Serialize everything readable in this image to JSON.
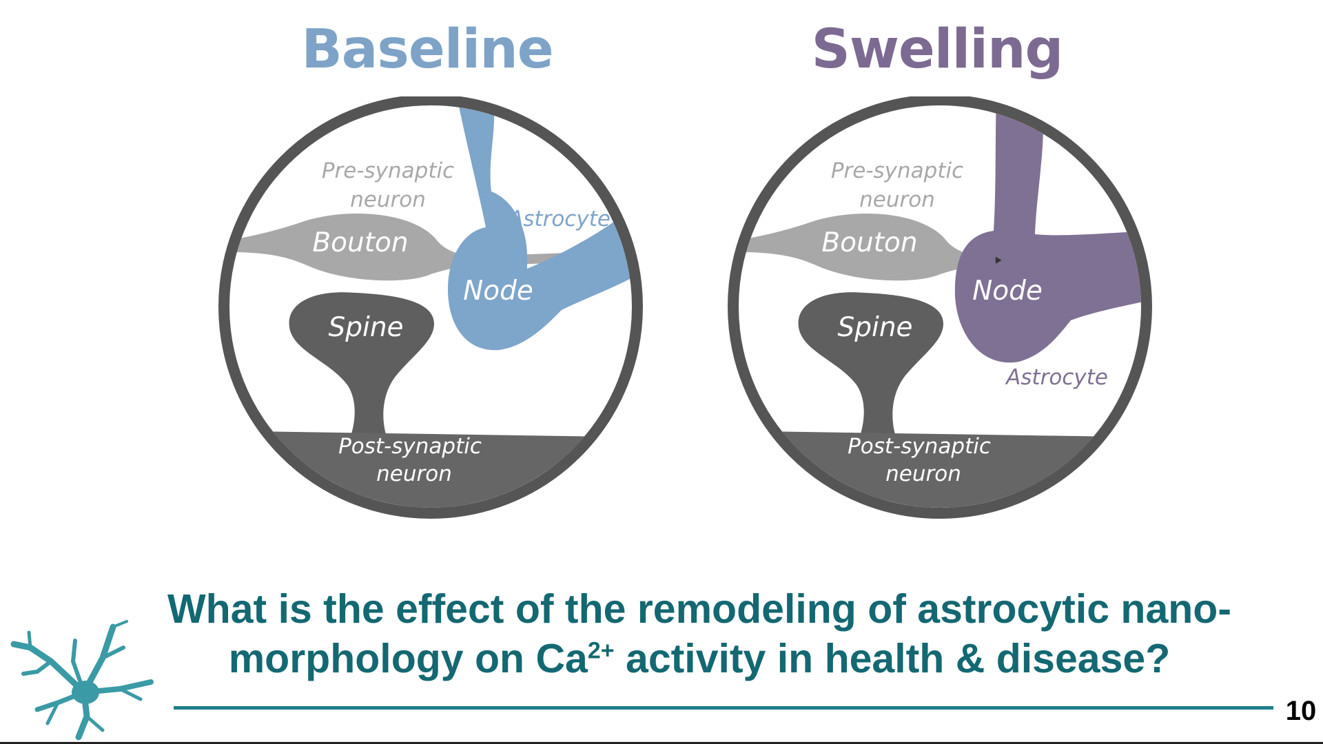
{
  "panels": [
    {
      "title": "Baseline",
      "title_color": "#7ea3c7",
      "astrocyte_color": "#7ea5ca",
      "labels": {
        "presynaptic_line1": "Pre-synaptic",
        "presynaptic_line2": "neuron",
        "bouton": "Bouton",
        "astrocyte": "Astrocyte",
        "node": "Node",
        "spine": "Spine",
        "postsynaptic_line1": "Post-synaptic",
        "postsynaptic_line2": "neuron"
      }
    },
    {
      "title": "Swelling",
      "title_color": "#7d6a92",
      "astrocyte_color": "#7f7193",
      "labels": {
        "presynaptic_line1": "Pre-synaptic",
        "presynaptic_line2": "neuron",
        "bouton": "Bouton",
        "astrocyte": "Astrocyte",
        "node": "Node",
        "spine": "Spine",
        "postsynaptic_line1": "Post-synaptic",
        "postsynaptic_line2": "neuron"
      }
    }
  ],
  "question": {
    "line1": "What is the effect of the remodeling of astrocytic nano-",
    "line2_before": "morphology on Ca",
    "line2_sup": "2+",
    "line2_after": " activity in health & disease?",
    "color": "#136872"
  },
  "page_number": "10",
  "logo": {
    "icon": "astrocyte-cell-icon",
    "color": "#3a9aa5"
  }
}
